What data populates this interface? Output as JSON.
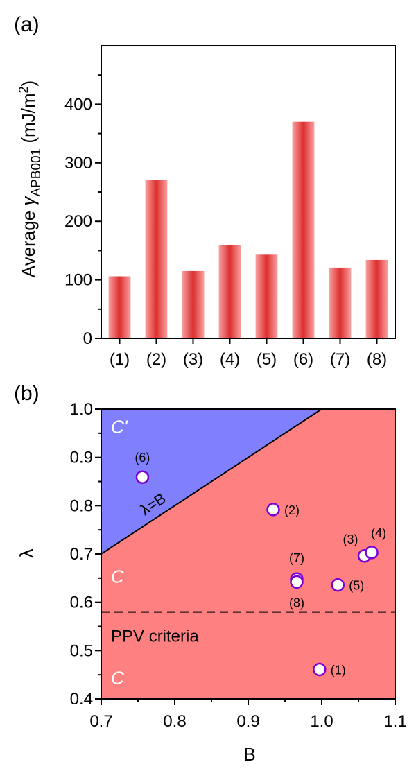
{
  "colors": {
    "bar_light": "#f8a0a0",
    "bar_dark": "#dd2f2f",
    "region_c": "#ff8080",
    "region_cprime": "#8080ff",
    "point_edge": "#7a00d4",
    "point_fill": "#ffffff"
  },
  "chart_data": [
    {
      "panel_label": "(a)",
      "type": "bar",
      "categories": [
        "(1)",
        "(2)",
        "(3)",
        "(4)",
        "(5)",
        "(6)",
        "(7)",
        "(8)"
      ],
      "values": [
        106,
        271,
        115,
        159,
        143,
        370,
        121,
        134
      ],
      "ylabel_main": "Average ",
      "ylabel_symbol": "γ",
      "ylabel_sub": "APB001",
      "ylabel_unit_pre": " (mJ/m",
      "ylabel_unit_sup": "2",
      "ylabel_unit_post": ")",
      "ylim": [
        0,
        500
      ],
      "yticks": [
        "0",
        "100",
        "200",
        "300",
        "400"
      ]
    },
    {
      "panel_label": "(b)",
      "type": "scatter",
      "xlabel": "B",
      "ylabel": "λ",
      "xlim": [
        0.7,
        1.1
      ],
      "ylim": [
        0.4,
        1.0
      ],
      "xticks": [
        "0.7",
        "0.8",
        "0.9",
        "1.0",
        "1.1"
      ],
      "yticks": [
        "0.4",
        "0.5",
        "0.6",
        "0.7",
        "0.8",
        "0.9",
        "1.0"
      ],
      "points": [
        {
          "label": "(1)",
          "x": 0.997,
          "y": 0.461
        },
        {
          "label": "(2)",
          "x": 0.934,
          "y": 0.792
        },
        {
          "label": "(3)",
          "x": 1.058,
          "y": 0.696
        },
        {
          "label": "(4)",
          "x": 1.068,
          "y": 0.703
        },
        {
          "label": "(5)",
          "x": 1.022,
          "y": 0.636
        },
        {
          "label": "(6)",
          "x": 0.756,
          "y": 0.859
        },
        {
          "label": "(7)",
          "x": 0.966,
          "y": 0.648
        },
        {
          "label": "(8)",
          "x": 0.966,
          "y": 0.642
        }
      ],
      "ppv_threshold": 0.58,
      "annotations": {
        "line": "λ=B",
        "ppv": "PPV criteria",
        "region_top": "C'",
        "region_mid": "C",
        "region_bot": "C"
      }
    }
  ]
}
